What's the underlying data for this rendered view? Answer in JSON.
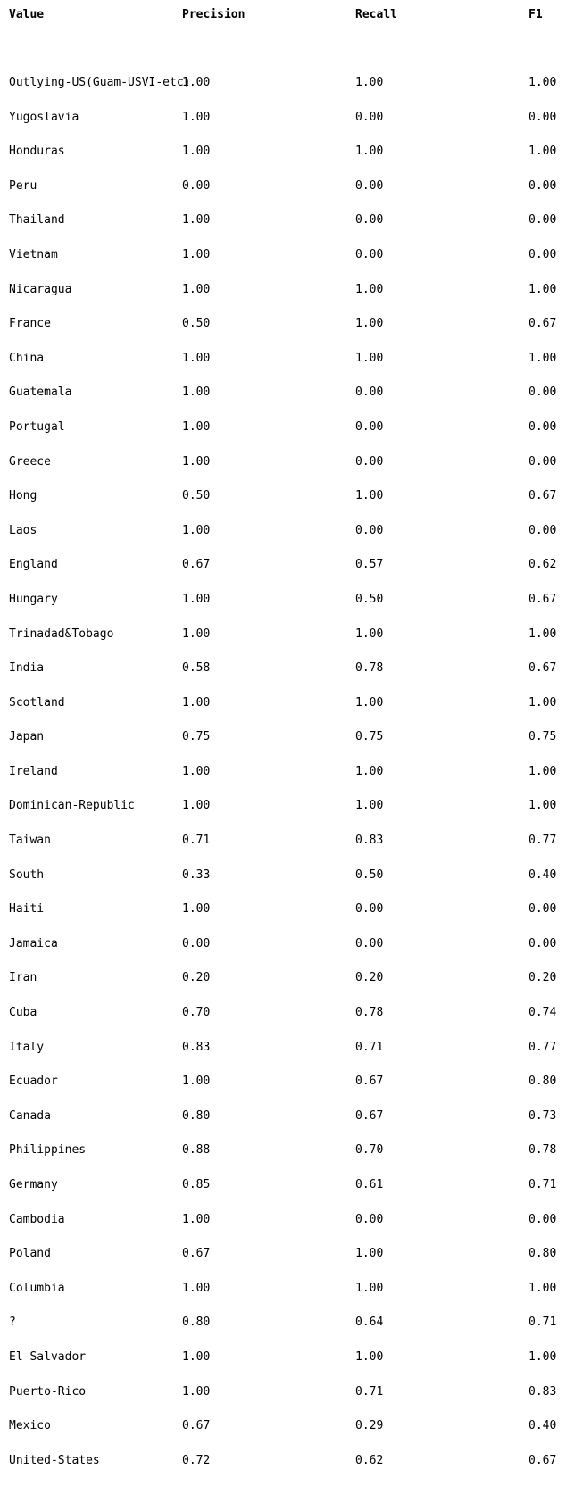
{
  "table": {
    "headers": [
      "Value",
      "Precision",
      "Recall",
      "F1"
    ],
    "rows": [
      [
        "Outlying-US(Guam-USVI-etc)",
        "1.00",
        "1.00",
        "1.00"
      ],
      [
        "Yugoslavia",
        "1.00",
        "0.00",
        "0.00"
      ],
      [
        "Honduras",
        "1.00",
        "1.00",
        "1.00"
      ],
      [
        "Peru",
        "0.00",
        "0.00",
        "0.00"
      ],
      [
        "Thailand",
        "1.00",
        "0.00",
        "0.00"
      ],
      [
        "Vietnam",
        "1.00",
        "0.00",
        "0.00"
      ],
      [
        "Nicaragua",
        "1.00",
        "1.00",
        "1.00"
      ],
      [
        "France",
        "0.50",
        "1.00",
        "0.67"
      ],
      [
        "China",
        "1.00",
        "1.00",
        "1.00"
      ],
      [
        "Guatemala",
        "1.00",
        "0.00",
        "0.00"
      ],
      [
        "Portugal",
        "1.00",
        "0.00",
        "0.00"
      ],
      [
        "Greece",
        "1.00",
        "0.00",
        "0.00"
      ],
      [
        "Hong",
        "0.50",
        "1.00",
        "0.67"
      ],
      [
        "Laos",
        "1.00",
        "0.00",
        "0.00"
      ],
      [
        "England",
        "0.67",
        "0.57",
        "0.62"
      ],
      [
        "Hungary",
        "1.00",
        "0.50",
        "0.67"
      ],
      [
        "Trinadad&Tobago",
        "1.00",
        "1.00",
        "1.00"
      ],
      [
        "India",
        "0.58",
        "0.78",
        "0.67"
      ],
      [
        "Scotland",
        "1.00",
        "1.00",
        "1.00"
      ],
      [
        "Japan",
        "0.75",
        "0.75",
        "0.75"
      ],
      [
        "Ireland",
        "1.00",
        "1.00",
        "1.00"
      ],
      [
        "Dominican-Republic",
        "1.00",
        "1.00",
        "1.00"
      ],
      [
        "Taiwan",
        "0.71",
        "0.83",
        "0.77"
      ],
      [
        "South",
        "0.33",
        "0.50",
        "0.40"
      ],
      [
        "Haiti",
        "1.00",
        "0.00",
        "0.00"
      ],
      [
        "Jamaica",
        "0.00",
        "0.00",
        "0.00"
      ],
      [
        "Iran",
        "0.20",
        "0.20",
        "0.20"
      ],
      [
        "Cuba",
        "0.70",
        "0.78",
        "0.74"
      ],
      [
        "Italy",
        "0.83",
        "0.71",
        "0.77"
      ],
      [
        "Ecuador",
        "1.00",
        "0.67",
        "0.80"
      ],
      [
        "Canada",
        "0.80",
        "0.67",
        "0.73"
      ],
      [
        "Philippines",
        "0.88",
        "0.70",
        "0.78"
      ],
      [
        "Germany",
        "0.85",
        "0.61",
        "0.71"
      ],
      [
        "Cambodia",
        "1.00",
        "0.00",
        "0.00"
      ],
      [
        "Poland",
        "0.67",
        "1.00",
        "0.80"
      ],
      [
        "Columbia",
        "1.00",
        "1.00",
        "1.00"
      ],
      [
        "?",
        "0.80",
        "0.64",
        "0.71"
      ],
      [
        "El-Salvador",
        "1.00",
        "1.00",
        "1.00"
      ],
      [
        "Puerto-Rico",
        "1.00",
        "0.71",
        "0.83"
      ],
      [
        "Mexico",
        "0.67",
        "0.29",
        "0.40"
      ],
      [
        "United-States",
        "0.72",
        "0.62",
        "0.67"
      ]
    ]
  }
}
